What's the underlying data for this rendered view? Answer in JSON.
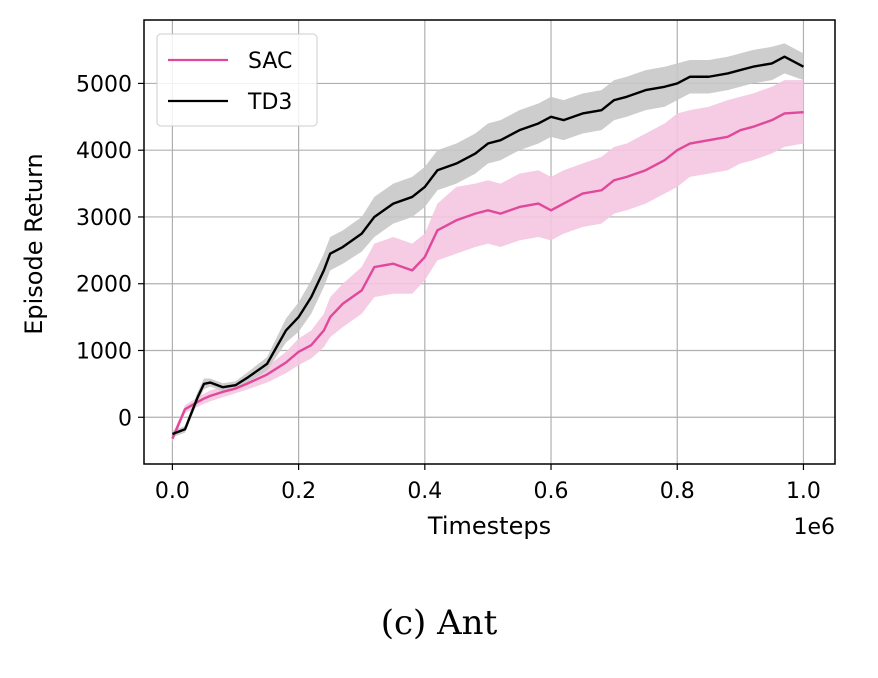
{
  "chart_data": {
    "type": "line",
    "xlabel": "Timesteps",
    "ylabel": "Episode Return",
    "x_offset_text": "1e6",
    "xlim": [
      -0.045,
      1.05
    ],
    "ylim": [
      -700,
      5950
    ],
    "x_ticks": [
      0.0,
      0.2,
      0.4,
      0.6,
      0.8,
      1.0
    ],
    "x_tick_labels": [
      "0.0",
      "0.2",
      "0.4",
      "0.6",
      "0.8",
      "1.0"
    ],
    "y_ticks": [
      0,
      1000,
      2000,
      3000,
      4000,
      5000
    ],
    "y_tick_labels": [
      "0",
      "1000",
      "2000",
      "3000",
      "4000",
      "5000"
    ],
    "grid": true,
    "legend_position": "top-left",
    "x": [
      0.0,
      0.02,
      0.04,
      0.05,
      0.06,
      0.08,
      0.1,
      0.12,
      0.15,
      0.18,
      0.2,
      0.22,
      0.24,
      0.25,
      0.27,
      0.3,
      0.32,
      0.35,
      0.38,
      0.4,
      0.42,
      0.45,
      0.48,
      0.5,
      0.52,
      0.55,
      0.58,
      0.6,
      0.62,
      0.65,
      0.68,
      0.7,
      0.72,
      0.75,
      0.78,
      0.8,
      0.82,
      0.85,
      0.88,
      0.9,
      0.92,
      0.95,
      0.97,
      1.0
    ],
    "series": [
      {
        "name": "SAC",
        "color": "#e0489b",
        "band_color": "#f4c6e0",
        "values": [
          -320,
          120,
          230,
          280,
          320,
          380,
          430,
          510,
          640,
          820,
          980,
          1080,
          1300,
          1500,
          1700,
          1900,
          2250,
          2300,
          2200,
          2400,
          2800,
          2950,
          3050,
          3100,
          3050,
          3150,
          3200,
          3100,
          3200,
          3350,
          3400,
          3550,
          3600,
          3700,
          3850,
          4000,
          4100,
          4150,
          4200,
          4300,
          4350,
          4450,
          4550,
          4570
        ],
        "lower": [
          -380,
          60,
          160,
          200,
          240,
          300,
          360,
          420,
          520,
          660,
          780,
          880,
          1050,
          1200,
          1350,
          1550,
          1800,
          1850,
          1850,
          2050,
          2350,
          2450,
          2550,
          2600,
          2550,
          2650,
          2700,
          2650,
          2750,
          2850,
          2900,
          3050,
          3100,
          3200,
          3350,
          3450,
          3600,
          3650,
          3700,
          3800,
          3850,
          3950,
          4050,
          4100
        ],
        "upper": [
          -260,
          180,
          300,
          350,
          400,
          460,
          500,
          600,
          760,
          980,
          1180,
          1300,
          1550,
          1800,
          2000,
          2250,
          2600,
          2700,
          2600,
          2750,
          3200,
          3450,
          3500,
          3550,
          3500,
          3650,
          3700,
          3600,
          3700,
          3800,
          3900,
          4050,
          4100,
          4250,
          4400,
          4550,
          4600,
          4650,
          4750,
          4800,
          4850,
          4950,
          5050,
          5050
        ]
      },
      {
        "name": "TD3",
        "color": "#000000",
        "band_color": "#c8c8c8",
        "values": [
          -250,
          -180,
          300,
          500,
          520,
          450,
          480,
          600,
          800,
          1300,
          1500,
          1800,
          2200,
          2450,
          2550,
          2750,
          3000,
          3200,
          3300,
          3450,
          3700,
          3800,
          3950,
          4100,
          4150,
          4300,
          4400,
          4500,
          4450,
          4550,
          4600,
          4750,
          4800,
          4900,
          4950,
          5000,
          5100,
          5100,
          5150,
          5200,
          5250,
          5300,
          5400,
          5250
        ],
        "lower": [
          -300,
          -230,
          220,
          420,
          460,
          390,
          420,
          520,
          700,
          1120,
          1280,
          1550,
          1950,
          2200,
          2300,
          2480,
          2700,
          2900,
          3000,
          3150,
          3400,
          3500,
          3650,
          3800,
          3850,
          4000,
          4100,
          4200,
          4150,
          4250,
          4300,
          4450,
          4500,
          4600,
          4650,
          4750,
          4850,
          4850,
          4900,
          4950,
          5000,
          5050,
          5150,
          5050
        ],
        "upper": [
          -200,
          -130,
          380,
          580,
          580,
          510,
          540,
          680,
          900,
          1480,
          1720,
          2050,
          2450,
          2700,
          2800,
          3000,
          3300,
          3500,
          3600,
          3750,
          4000,
          4100,
          4250,
          4400,
          4450,
          4600,
          4700,
          4800,
          4750,
          4850,
          4900,
          5050,
          5100,
          5200,
          5250,
          5300,
          5350,
          5350,
          5400,
          5450,
          5500,
          5550,
          5600,
          5450
        ]
      }
    ]
  },
  "caption": "(c) Ant"
}
